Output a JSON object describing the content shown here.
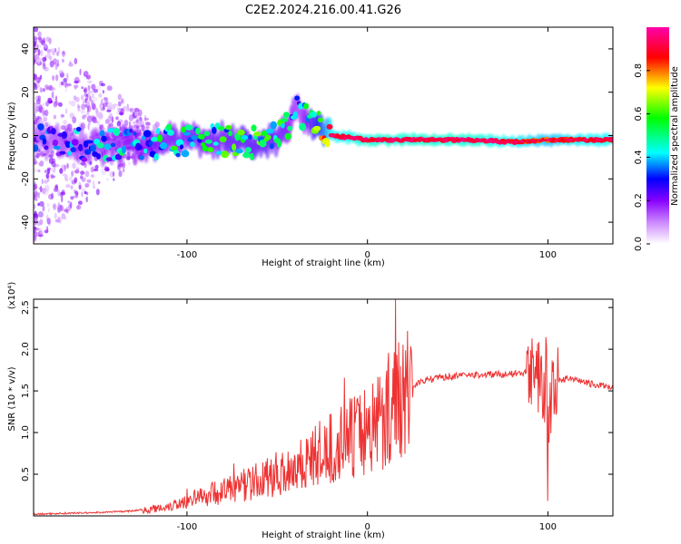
{
  "title": "C2E2.2024.216.00.41.G26",
  "chart_data": [
    {
      "type": "heatmap",
      "xlabel": "Height of straight line (km)",
      "ylabel": "Frequency (Hz)",
      "xlim": [
        -185,
        136
      ],
      "ylim": [
        -50,
        50
      ],
      "xticks": [
        -100,
        0,
        100
      ],
      "yticks": [
        -40,
        -20,
        0,
        20,
        40
      ],
      "colorbar": {
        "label": "Normalized spectral amplitude",
        "range": [
          0,
          1
        ],
        "ticks": [
          0.0,
          0.2,
          0.4,
          0.6,
          0.8
        ],
        "colormap": [
          "#ffffff",
          "#cc88ff",
          "#8800ff",
          "#0000ff",
          "#00ffff",
          "#00ff00",
          "#ffff00",
          "#ff0000",
          "#ff00aa"
        ]
      },
      "ridge": {
        "x": [
          -185,
          -170,
          -150,
          -130,
          -110,
          -90,
          -70,
          -55,
          -45,
          -38,
          -30,
          -20,
          0,
          20,
          40,
          60,
          80,
          100,
          120,
          136
        ],
        "frequency": [
          -2,
          -3,
          -5,
          -4,
          -3,
          -1,
          -3,
          -4,
          4,
          12,
          5,
          0,
          -2,
          -2,
          -2,
          -2,
          -3,
          -2,
          -2,
          -2
        ],
        "amplitude": [
          0.3,
          0.35,
          0.4,
          0.45,
          0.5,
          0.5,
          0.55,
          0.55,
          0.5,
          0.35,
          0.6,
          0.9,
          0.95,
          0.95,
          0.95,
          0.95,
          0.9,
          0.85,
          0.9,
          0.9
        ]
      }
    },
    {
      "type": "line",
      "xlabel": "Height of straight line (km)",
      "ylabel": "SNR (10 * v/v)",
      "scale_label": "(x10⁴)",
      "xlim": [
        -185,
        136
      ],
      "ylim": [
        0,
        2.6
      ],
      "xticks": [
        -100,
        0,
        100
      ],
      "yticks": [
        0.5,
        1.0,
        1.5,
        2.0,
        2.5
      ],
      "series": [
        {
          "color": "#ee3333",
          "x": [
            -185,
            -170,
            -150,
            -130,
            -120,
            -110,
            -100,
            -90,
            -80,
            -70,
            -60,
            -50,
            -40,
            -30,
            -20,
            -10,
            0,
            10,
            20,
            30,
            40,
            50,
            60,
            70,
            80,
            90,
            95,
            98,
            100,
            102,
            105,
            110,
            120,
            130,
            136
          ],
          "y": [
            0.01,
            0.02,
            0.03,
            0.05,
            0.08,
            0.12,
            0.18,
            0.25,
            0.3,
            0.35,
            0.42,
            0.5,
            0.6,
            0.7,
            0.8,
            0.92,
            1.05,
            1.25,
            1.5,
            1.62,
            1.66,
            1.68,
            1.69,
            1.7,
            1.7,
            1.72,
            1.68,
            1.5,
            0.9,
            1.4,
            1.62,
            1.65,
            1.6,
            1.56,
            1.55
          ]
        }
      ]
    }
  ]
}
